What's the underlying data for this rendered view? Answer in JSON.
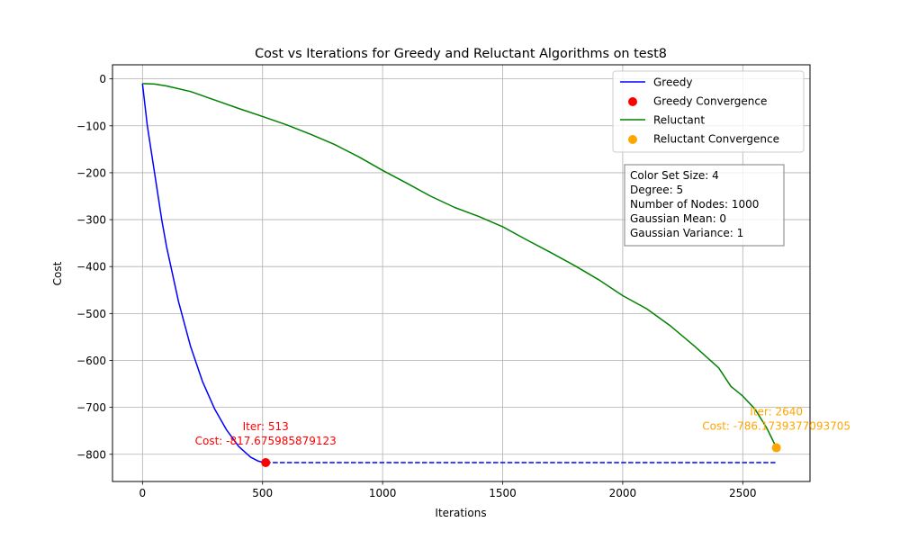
{
  "chart_data": {
    "type": "line",
    "title": "Cost vs Iterations for Greedy and Reluctant Algorithms on test8",
    "xlabel": "Iterations",
    "ylabel": "Cost",
    "xlim": [
      -125,
      2780
    ],
    "ylim": [
      -858,
      30
    ],
    "x_ticks": [
      0,
      500,
      1000,
      1500,
      2000,
      2500
    ],
    "y_ticks": [
      0,
      -100,
      -200,
      -300,
      -400,
      -500,
      -600,
      -700,
      -800
    ],
    "x_tick_labels": [
      "0",
      "500",
      "1000",
      "1500",
      "2000",
      "2500"
    ],
    "y_tick_labels": [
      "0",
      "−100",
      "−200",
      "−300",
      "−400",
      "−500",
      "−600",
      "−700",
      "−800"
    ],
    "grid": true,
    "legend_position": "top-right",
    "legend": [
      {
        "label": "Greedy",
        "kind": "line",
        "color": "#0000ff"
      },
      {
        "label": "Greedy Convergence",
        "kind": "marker",
        "color": "#ff0000"
      },
      {
        "label": "Reluctant",
        "kind": "line",
        "color": "#008000"
      },
      {
        "label": "Reluctant Convergence",
        "kind": "marker",
        "color": "#ffa500"
      }
    ],
    "series": [
      {
        "name": "Greedy",
        "color": "#0000ff",
        "x": [
          0,
          20,
          50,
          80,
          100,
          150,
          200,
          250,
          300,
          350,
          400,
          450,
          480,
          500,
          513
        ],
        "y": [
          -10,
          -100,
          -200,
          -300,
          -357,
          -475,
          -570,
          -645,
          -703,
          -748,
          -783,
          -806,
          -814,
          -817,
          -817.68
        ]
      },
      {
        "name": "Reluctant",
        "color": "#008000",
        "x": [
          0,
          50,
          100,
          200,
          300,
          400,
          500,
          600,
          700,
          800,
          900,
          1000,
          1100,
          1200,
          1300,
          1400,
          1500,
          1600,
          1700,
          1800,
          1900,
          2000,
          2100,
          2200,
          2300,
          2400,
          2450,
          2500,
          2550,
          2600,
          2620,
          2640
        ],
        "y": [
          -10,
          -11,
          -15,
          -27,
          -45,
          -63,
          -80,
          -98,
          -118,
          -140,
          -166,
          -195,
          -222,
          -250,
          -274,
          -293,
          -315,
          -343,
          -370,
          -398,
          -428,
          -462,
          -490,
          -527,
          -570,
          -616,
          -655,
          -676,
          -703,
          -744,
          -765,
          -786.17
        ]
      },
      {
        "name": "Greedy Final Cost",
        "color": "#0000ff",
        "style": "dashed",
        "x": [
          513,
          2640
        ],
        "y": [
          -817.68,
          -817.68
        ]
      }
    ],
    "markers": [
      {
        "name": "Greedy Convergence",
        "x": 513,
        "y": -817.68,
        "color": "#ff0000"
      },
      {
        "name": "Reluctant Convergence",
        "x": 2640,
        "y": -786.17,
        "color": "#ffa500"
      }
    ],
    "annotations": [
      {
        "lines": [
          "Iter: 513",
          "Cost: -817.675985879123"
        ],
        "x": 513,
        "y": -817.68,
        "color": "#ff0000"
      },
      {
        "lines": [
          "Iter: 2640",
          "Cost: -786.1739377093705"
        ],
        "x": 2640,
        "y": -786.17,
        "color": "#ffa500"
      }
    ],
    "info_box": [
      "Color Set Size: 4",
      "Degree: 5",
      "Number of Nodes: 1000",
      "Gaussian Mean: 0",
      "Gaussian Variance: 1"
    ]
  }
}
